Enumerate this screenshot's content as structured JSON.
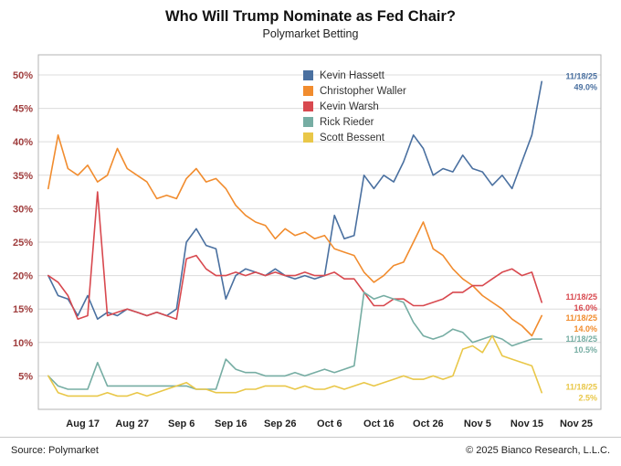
{
  "header": {
    "title": "Who Will Trump Nominate as Fed Chair?",
    "subtitle": "Polymarket Betting"
  },
  "footer": {
    "source": "Source: Polymarket",
    "copyright": "© 2025 Bianco Research, L.L.C."
  },
  "chart_data": {
    "type": "line",
    "title": "Who Will Trump Nominate as Fed Chair?",
    "subtitle": "Polymarket Betting",
    "xlabel": "",
    "ylabel": "",
    "ylim": [
      0,
      53
    ],
    "grid": "horizontal",
    "legend_position": "upper-center-inside",
    "x_unit": "day index, 2-day sampling (day 0 ≈ Aug 10, 2025; day 100 = Nov 18, 2025)",
    "y_ticks": [
      {
        "value": 5,
        "label": "5%"
      },
      {
        "value": 10,
        "label": "10%"
      },
      {
        "value": 15,
        "label": "15%"
      },
      {
        "value": 20,
        "label": "20%"
      },
      {
        "value": 25,
        "label": "25%"
      },
      {
        "value": 30,
        "label": "30%"
      },
      {
        "value": 35,
        "label": "35%"
      },
      {
        "value": 40,
        "label": "40%"
      },
      {
        "value": 45,
        "label": "45%"
      },
      {
        "value": 50,
        "label": "50%"
      }
    ],
    "x_ticks": [
      {
        "label": "Aug 17",
        "day": 7
      },
      {
        "label": "Aug 27",
        "day": 17
      },
      {
        "label": "Sep 6",
        "day": 27
      },
      {
        "label": "Sep 16",
        "day": 37
      },
      {
        "label": "Sep 26",
        "day": 47
      },
      {
        "label": "Oct 6",
        "day": 57
      },
      {
        "label": "Oct 16",
        "day": 67
      },
      {
        "label": "Oct 26",
        "day": 77
      },
      {
        "label": "Nov 5",
        "day": 87
      },
      {
        "label": "Nov 15",
        "day": 97
      },
      {
        "label": "Nov 25",
        "day": 107
      }
    ],
    "x": [
      0,
      2,
      4,
      6,
      8,
      10,
      12,
      14,
      16,
      18,
      20,
      22,
      24,
      26,
      28,
      30,
      32,
      34,
      36,
      38,
      40,
      42,
      44,
      46,
      48,
      50,
      52,
      54,
      56,
      58,
      60,
      62,
      64,
      66,
      68,
      70,
      72,
      74,
      76,
      78,
      80,
      82,
      84,
      86,
      88,
      90,
      92,
      94,
      96,
      98,
      100
    ],
    "series": [
      {
        "name": "Kevin Hassett",
        "color": "#4a70a0",
        "values": [
          20,
          17,
          16.5,
          14,
          17,
          13.5,
          14.5,
          14,
          15,
          14.5,
          14,
          14.5,
          14,
          15,
          25,
          27,
          24.5,
          24,
          16.5,
          20,
          21,
          20.5,
          20,
          21,
          20,
          19.5,
          20,
          19.5,
          20,
          29,
          25.5,
          26,
          35,
          33,
          35,
          34,
          37,
          41,
          39,
          35,
          36,
          35.5,
          38,
          36,
          35.5,
          33.5,
          35,
          33,
          37,
          41,
          49
        ],
        "annotation": {
          "date": "11/18/25",
          "value_label": "49.0%"
        }
      },
      {
        "name": "Christopher Waller",
        "color": "#f18c2e",
        "values": [
          33,
          41,
          36,
          35,
          36.5,
          34,
          35,
          39,
          36,
          35,
          34,
          31.5,
          32,
          31.5,
          34.5,
          36,
          34,
          34.5,
          33,
          30.5,
          29,
          28,
          27.5,
          25.5,
          27,
          26,
          26.5,
          25.5,
          26,
          24,
          23.5,
          23,
          20.5,
          19,
          20,
          21.5,
          22,
          25,
          28,
          24,
          23,
          21,
          19.5,
          18.5,
          17,
          16,
          15,
          13.5,
          12.5,
          11,
          14
        ],
        "annotation": {
          "date": "11/18/25",
          "value_label": "14.0%"
        }
      },
      {
        "name": "Kevin Warsh",
        "color": "#d8494f",
        "values": [
          20,
          19,
          17,
          13.5,
          14,
          32.5,
          14,
          14.5,
          15,
          14.5,
          14,
          14.5,
          14,
          13.5,
          22.5,
          23,
          21,
          20,
          20,
          20.5,
          20,
          20.5,
          20,
          20.5,
          20,
          20,
          20.5,
          20,
          20,
          20.5,
          19.5,
          19.5,
          17.5,
          15.5,
          15.5,
          16.5,
          16.5,
          15.5,
          15.5,
          16,
          16.5,
          17.5,
          17.5,
          18.5,
          18.5,
          19.5,
          20.5,
          21,
          20,
          20.5,
          16
        ],
        "annotation": {
          "date": "11/18/25",
          "value_label": "16.0%"
        }
      },
      {
        "name": "Rick Rieder",
        "color": "#76ada3",
        "values": [
          5,
          3.5,
          3,
          3,
          3,
          7,
          3.5,
          3.5,
          3.5,
          3.5,
          3.5,
          3.5,
          3.5,
          3.5,
          3.5,
          3,
          3,
          3,
          7.5,
          6,
          5.5,
          5.5,
          5,
          5,
          5,
          5.5,
          5,
          5.5,
          6,
          5.5,
          6,
          6.5,
          17.5,
          16.5,
          17,
          16.5,
          16,
          13,
          11,
          10.5,
          11,
          12,
          11.5,
          10,
          10.5,
          11,
          10.5,
          9.5,
          10,
          10.5,
          10.5
        ],
        "annotation": {
          "date": "11/18/25",
          "value_label": "10.5%"
        }
      },
      {
        "name": "Scott Bessent",
        "color": "#e9c748",
        "values": [
          5,
          2.5,
          2,
          2,
          2,
          2,
          2.5,
          2,
          2,
          2.5,
          2,
          2.5,
          3,
          3.5,
          4,
          3,
          3,
          2.5,
          2.5,
          2.5,
          3,
          3,
          3.5,
          3.5,
          3.5,
          3,
          3.5,
          3,
          3,
          3.5,
          3,
          3.5,
          4,
          3.5,
          4,
          4.5,
          5,
          4.5,
          4.5,
          5,
          4.5,
          5,
          9,
          9.5,
          8.5,
          11,
          8,
          7.5,
          7,
          6.5,
          2.5
        ],
        "annotation": {
          "date": "11/18/25",
          "value_label": "2.5%"
        }
      }
    ]
  }
}
